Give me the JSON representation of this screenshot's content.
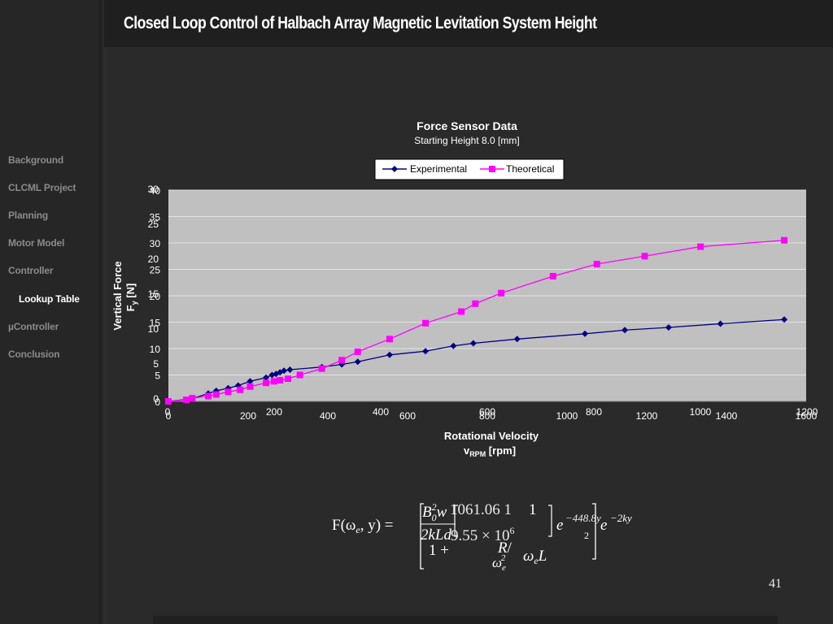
{
  "slide": {
    "title": "Closed Loop Control of Halbach Array Magnetic Levitation System Height",
    "number": "41"
  },
  "sidebar": {
    "items": [
      {
        "label": "Background",
        "active": false
      },
      {
        "label": "CLCML Project",
        "active": false
      },
      {
        "label": "Planning",
        "active": false
      },
      {
        "label": "Motor Model",
        "active": false
      },
      {
        "label": "Controller",
        "active": false
      },
      {
        "label": "Lookup Table",
        "active": true
      },
      {
        "label": "µController",
        "active": false
      },
      {
        "label": "Conclusion",
        "active": false
      }
    ]
  },
  "chart_data": {
    "type": "line",
    "title": "Force Sensor Data",
    "subtitle": "Starting Height 8.0 [mm]",
    "xlabel_line1": "Rotational Velocity",
    "xlabel_line2": "v",
    "xlabel_sub": "RPM",
    "xlabel_unit": " [rpm]",
    "ylabel_line1": "Vertical Force",
    "ylabel_line2": "F",
    "ylabel_sub": "y",
    "ylabel_unit": " [N]",
    "xlim": [
      0,
      1600
    ],
    "ylim": [
      0,
      40
    ],
    "x_ticks": [
      "0",
      "200",
      "400",
      "600",
      "800",
      "1000",
      "1200",
      "1400",
      "1600"
    ],
    "y_ticks": [
      "0",
      "5",
      "10",
      "15",
      "20",
      "25",
      "30",
      "35",
      "40"
    ],
    "ghost_x_ticks": [
      "0",
      "200",
      "400",
      "600",
      "800",
      "1000",
      "1200"
    ],
    "ghost_y_ticks": [
      "0",
      "5",
      "10",
      "15",
      "20",
      "25",
      "30"
    ],
    "grid": true,
    "legend_position": "top",
    "plot_background": "#c0c0c0",
    "series": [
      {
        "name": "Experimental",
        "color": "#000080",
        "marker": "diamond",
        "x": [
          0,
          60,
          100,
          120,
          150,
          175,
          205,
          245,
          260,
          270,
          280,
          290,
          305,
          385,
          435,
          475,
          555,
          645,
          715,
          765,
          875,
          1045,
          1145,
          1255,
          1385,
          1545
        ],
        "y": [
          0,
          0.5,
          1.5,
          2.0,
          2.5,
          3.0,
          3.8,
          4.5,
          5.0,
          5.2,
          5.5,
          5.8,
          6.0,
          6.5,
          7.0,
          7.5,
          8.8,
          9.5,
          10.5,
          11.0,
          11.8,
          12.8,
          13.5,
          14.0,
          14.7,
          15.5
        ]
      },
      {
        "name": "Theoretical",
        "color": "#ff00ff",
        "marker": "square",
        "x": [
          0,
          45,
          60,
          100,
          120,
          150,
          180,
          205,
          245,
          265,
          280,
          300,
          330,
          385,
          435,
          475,
          555,
          645,
          735,
          770,
          835,
          965,
          1075,
          1195,
          1335,
          1545
        ],
        "y": [
          0,
          0.3,
          0.6,
          1.0,
          1.3,
          1.8,
          2.2,
          2.8,
          3.5,
          3.8,
          4.0,
          4.3,
          5.0,
          6.2,
          7.8,
          9.4,
          11.8,
          14.8,
          17.0,
          18.5,
          20.5,
          23.7,
          26.0,
          27.5,
          29.3,
          30.5
        ]
      }
    ]
  },
  "formula": {
    "lhs": "F(ω",
    "lhs_sub": "e",
    "lhs_tail": ", y) =",
    "b": "B",
    "b_sub": "0",
    "b_sup": "2",
    "w": "w",
    "frac1_den": "2kLd",
    "one": "1",
    "plus": "1 +",
    "r": "R",
    "slash": "/",
    "omega": "ω",
    "omega_sub": "e",
    "omega_sq_sup": "2",
    "l": "L",
    "sq": "2",
    "e": "e",
    "exp": "−2ky",
    "ghost_num": "1061.06   1",
    "ghost_den": "9.55 × 10",
    "ghost_den_sup": "6",
    "ghost_exp": "−448.8y"
  }
}
